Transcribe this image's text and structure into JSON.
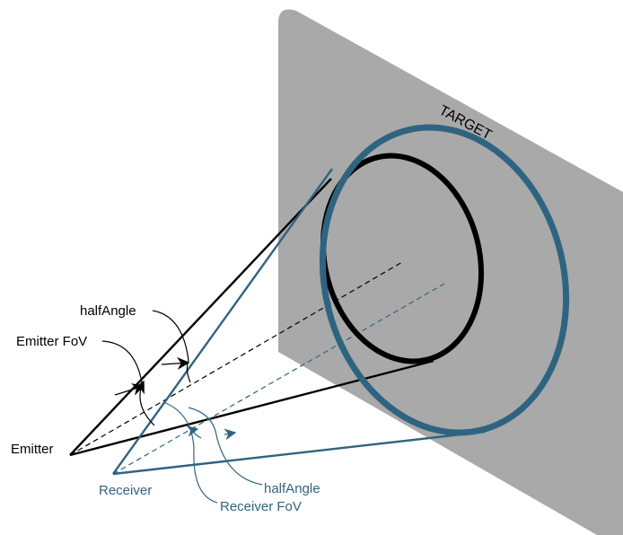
{
  "colors": {
    "plane": "#a9a9a9",
    "emitter": "#000000",
    "receiver": "#2f6480",
    "background": "#ffffff"
  },
  "target": {
    "label": "TARGET"
  },
  "emitter": {
    "label": "Emitter",
    "fov_label": "Emitter FoV",
    "half_angle_label": "halfAngle"
  },
  "receiver": {
    "label": "Receiver",
    "fov_label": "Receiver FoV",
    "half_angle_label": "halfAngle"
  }
}
